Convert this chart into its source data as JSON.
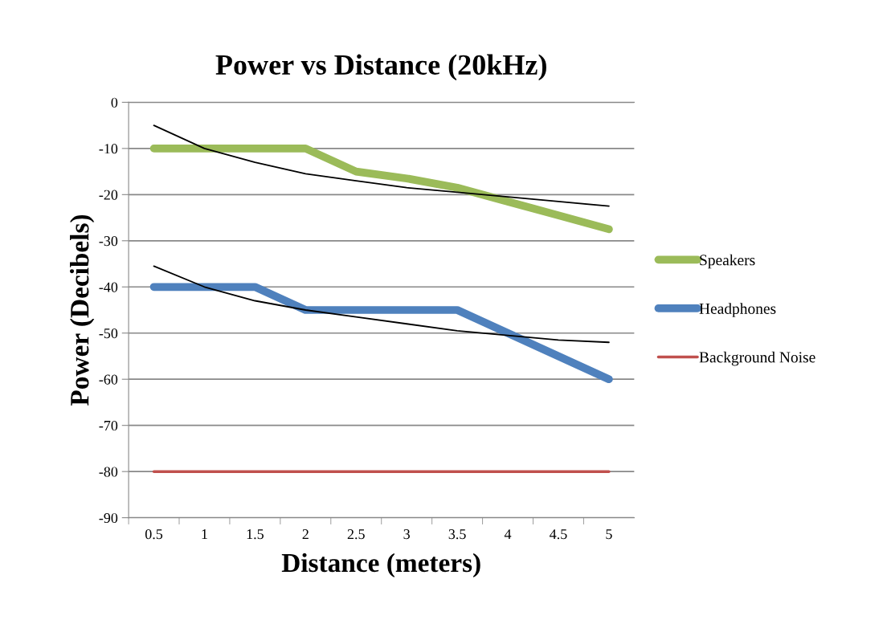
{
  "chart_data": {
    "type": "line",
    "title": "Power vs Distance (20kHz)",
    "xlabel": "Distance (meters)",
    "ylabel": "Power (Decibels)",
    "categories": [
      "0.5",
      "1",
      "1.5",
      "2",
      "2.5",
      "3",
      "3.5",
      "4",
      "4.5",
      "5"
    ],
    "series": [
      {
        "name": "Speakers",
        "color": "#9bbb59",
        "values": [
          -10,
          -10,
          -10,
          -10,
          -15,
          -16.5,
          -18.5,
          -21.5,
          -24.5,
          -27.5
        ]
      },
      {
        "name": "Headphones",
        "color": "#4f81bd",
        "values": [
          -40,
          -40,
          -40,
          -45,
          -45,
          -45,
          -45,
          -50,
          -55,
          -60
        ]
      },
      {
        "name": "Background Noise",
        "color": "#c0504d",
        "values": [
          -80,
          -80,
          -80,
          -80,
          -80,
          -80,
          -80,
          -80,
          -80,
          -80
        ]
      },
      {
        "color": "#000000",
        "values": [
          -5,
          -10,
          -13,
          -15.5,
          -17,
          -18.5,
          -19.5,
          -20.5,
          -21.5,
          -22.5
        ]
      },
      {
        "color": "#000000",
        "values": [
          -35.5,
          -40,
          -43,
          -45,
          -46.5,
          -48,
          -49.5,
          -50.5,
          -51.5,
          -52
        ]
      }
    ],
    "ylim": [
      -90,
      0
    ],
    "yticks": [
      -90,
      -80,
      -70,
      -60,
      -50,
      -40,
      -30,
      -20,
      -10,
      0
    ],
    "grid": "y",
    "legend": "right"
  }
}
